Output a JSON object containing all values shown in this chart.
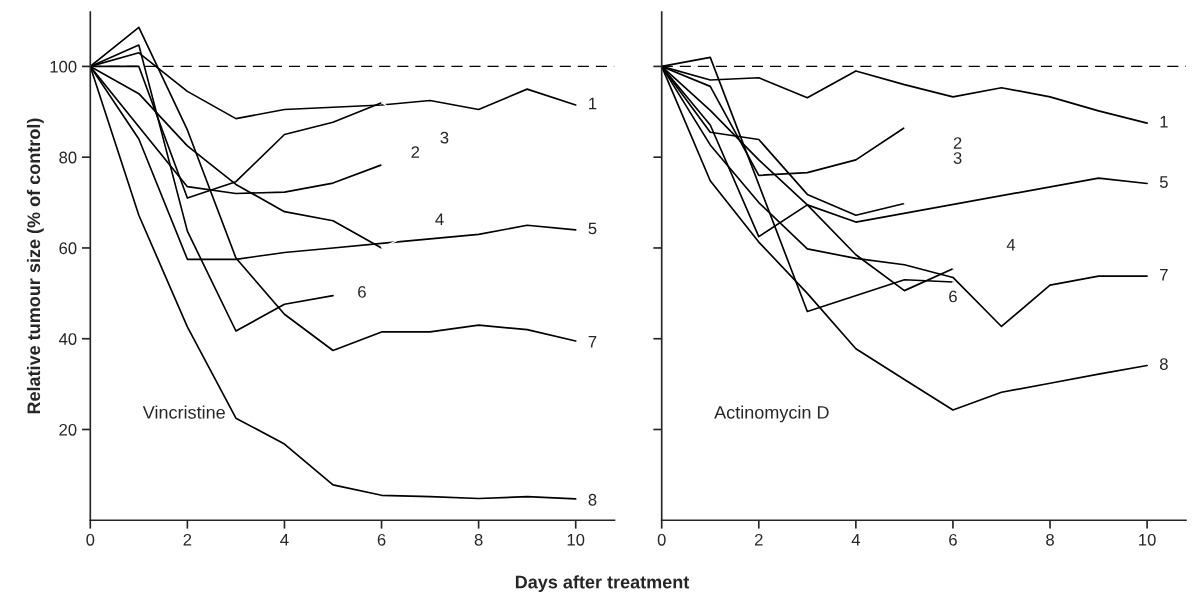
{
  "chart_data": [
    {
      "type": "line",
      "xlabel": "Days after treatment",
      "ylabel": "Relative tumour size (% of control)",
      "annotations": [
        "Vincristine"
      ],
      "xlim": [
        0,
        10.8
      ],
      "ylim": [
        0,
        112
      ],
      "xticks": [
        0,
        2,
        4,
        6,
        8,
        10
      ],
      "yticks": [
        20,
        40,
        60,
        80,
        100
      ],
      "grid": false,
      "legend": false,
      "line_style": "solid",
      "marker": "none",
      "ref_lines": [
        {
          "axis": "y",
          "value": 100,
          "line_style": "dashed",
          "color": "#000000"
        }
      ],
      "series": [
        {
          "name": "1",
          "color": "#000000",
          "x": [
            0,
            1,
            2,
            3,
            4,
            5,
            6,
            7,
            8,
            9,
            10
          ],
          "values": [
            100,
            103,
            94.5,
            88.5,
            90.5,
            91,
            91.5,
            92.5,
            90.5,
            95,
            91.5
          ]
        },
        {
          "name": "2",
          "color": "#000000",
          "x": [
            0,
            1,
            2,
            3,
            4,
            5,
            6
          ],
          "values": [
            100,
            86.7,
            73.5,
            72,
            72.3,
            74.3,
            78.3
          ]
        },
        {
          "name": "3",
          "color": "#000000",
          "x": [
            0,
            1,
            2,
            3,
            4,
            5,
            6
          ],
          "values": [
            100,
            100,
            71,
            74.6,
            85,
            87.7,
            92
          ]
        },
        {
          "name": "4",
          "color": "#000000",
          "x": [
            0,
            1,
            2,
            3,
            4,
            5,
            6
          ],
          "values": [
            100,
            94,
            82.5,
            74,
            68,
            66,
            60
          ]
        },
        {
          "name": "5",
          "color": "#000000",
          "x": [
            0,
            1,
            2,
            3,
            4,
            5,
            6,
            7,
            8,
            9,
            10
          ],
          "values": [
            100,
            84,
            57.5,
            57.5,
            59,
            60,
            61,
            62,
            63,
            65,
            64
          ]
        },
        {
          "name": "6",
          "color": "#000000",
          "x": [
            0,
            1,
            2,
            3,
            4,
            5
          ],
          "values": [
            100,
            104.7,
            63.7,
            41.7,
            47.6,
            49.5
          ]
        },
        {
          "name": "7",
          "color": "#000000",
          "x": [
            0,
            1,
            2,
            3,
            4,
            5,
            6,
            7,
            8,
            9,
            10
          ],
          "values": [
            100,
            108.6,
            86,
            57.8,
            45.4,
            37.4,
            41.5,
            41.5,
            43,
            42,
            39.5
          ]
        },
        {
          "name": "8",
          "color": "#000000",
          "x": [
            0,
            1,
            2,
            3,
            4,
            5,
            6,
            7,
            8,
            9,
            10
          ],
          "values": [
            100,
            67.2,
            42.6,
            22.5,
            16.8,
            7.8,
            5.5,
            5.2,
            4.8,
            5.2,
            4.7
          ]
        }
      ]
    },
    {
      "type": "line",
      "annotations": [
        "Actinomycin D"
      ],
      "xlim": [
        0,
        10.8
      ],
      "ylim": [
        0,
        112
      ],
      "xticks": [
        0,
        2,
        4,
        6,
        8,
        10
      ],
      "yticks": [
        20,
        40,
        60,
        80,
        100
      ],
      "tick_labels": "x",
      "grid": false,
      "legend": false,
      "line_style": "solid",
      "marker": "none",
      "ref_lines": [
        {
          "axis": "y",
          "value": 100,
          "line_style": "dashed",
          "color": "#000000"
        }
      ],
      "series": [
        {
          "name": "1",
          "color": "#000000",
          "x": [
            0,
            1,
            2,
            3,
            4,
            5,
            6,
            7,
            8,
            9,
            10
          ],
          "values": [
            100,
            97,
            97.5,
            93.1,
            99,
            96,
            93.3,
            95.3,
            93.3,
            90.2,
            87.5
          ]
        },
        {
          "name": "2",
          "color": "#000000",
          "x": [
            0,
            1,
            2,
            3,
            4,
            5
          ],
          "values": [
            100,
            85.5,
            83.9,
            71.8,
            67.2,
            69.8
          ]
        },
        {
          "name": "3",
          "color": "#000000",
          "x": [
            0,
            1,
            2,
            3,
            4,
            5
          ],
          "values": [
            100,
            95.6,
            76,
            76.6,
            79.4,
            86.5
          ]
        },
        {
          "name": "4",
          "color": "#000000",
          "x": [
            0,
            1,
            2,
            3,
            4,
            5,
            6
          ],
          "values": [
            100,
            90.3,
            79.4,
            69.5,
            58.5,
            50.6,
            55.4
          ]
        },
        {
          "name": "5",
          "color": "#000000",
          "x": [
            0,
            1,
            2,
            3,
            4,
            9,
            10
          ],
          "values": [
            100,
            87.1,
            62.5,
            69.5,
            65.7,
            75.4,
            74.2
          ]
        },
        {
          "name": "6",
          "color": "#000000",
          "x": [
            0,
            1,
            3,
            5,
            6
          ],
          "values": [
            100,
            102,
            46,
            53,
            52.5
          ]
        },
        {
          "name": "7",
          "color": "#000000",
          "x": [
            0,
            1,
            2,
            3,
            4,
            5,
            6,
            7,
            8,
            9,
            10
          ],
          "values": [
            100,
            82.7,
            70,
            59.8,
            57.7,
            56.3,
            53.5,
            42.7,
            51.8,
            53.8,
            53.8
          ]
        },
        {
          "name": "8",
          "color": "#000000",
          "x": [
            0,
            1,
            2,
            3,
            4,
            5,
            6,
            7,
            8,
            9,
            10
          ],
          "values": [
            100,
            74.8,
            61.3,
            50,
            37.8,
            31,
            24.3,
            28.2,
            30.2,
            32.2,
            34.1
          ]
        }
      ]
    }
  ]
}
